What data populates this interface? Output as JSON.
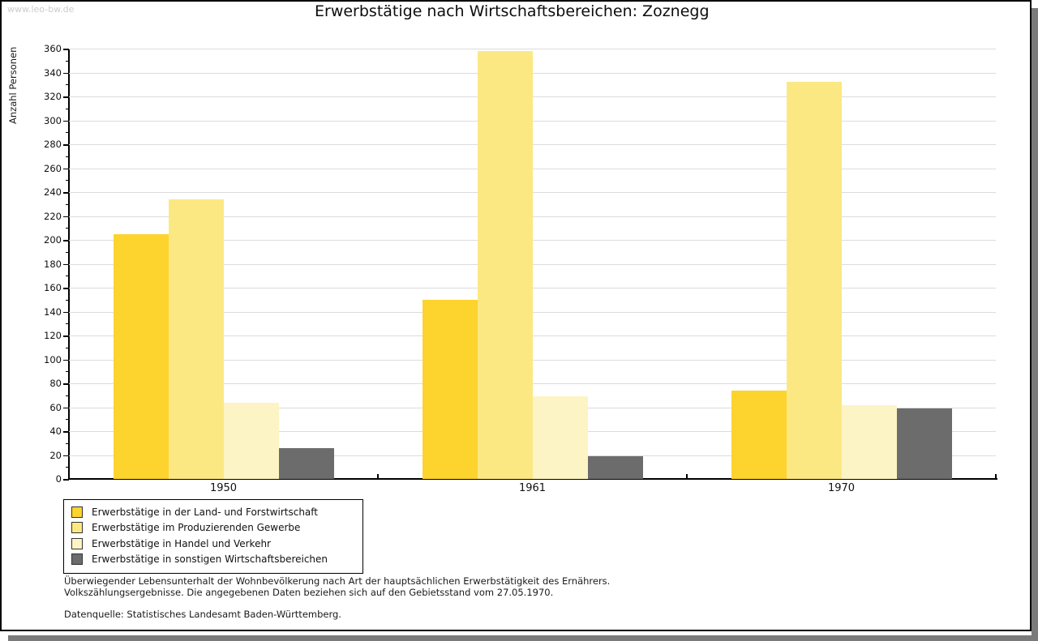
{
  "watermark": "www.leo-bw.de",
  "header": {
    "title": "Erwerbstätige nach Wirtschaftsbereichen: Zoznegg"
  },
  "chart_data": {
    "type": "bar",
    "title": "Erwerbstätige nach Wirtschaftsbereichen: Zoznegg",
    "xlabel": "",
    "ylabel": "Anzahl Personen",
    "categories": [
      "1950",
      "1961",
      "1970"
    ],
    "series": [
      {
        "name": "Erwerbstätige in der Land- und Forstwirtschaft",
        "color": "#fdd32e",
        "values": [
          205,
          150,
          74
        ]
      },
      {
        "name": "Erwerbstätige im Produzierenden Gewerbe",
        "color": "#fce883",
        "values": [
          234,
          358,
          332
        ]
      },
      {
        "name": "Erwerbstätige in Handel und Verkehr",
        "color": "#fcf4c5",
        "values": [
          64,
          69,
          62
        ]
      },
      {
        "name": "Erwerbstätige in sonstigen Wirtschaftsbereichen",
        "color": "#6c6c6c",
        "values": [
          26,
          19,
          59
        ]
      }
    ],
    "ylim": [
      0,
      360
    ],
    "ytick_step": 20,
    "yminor_step": 10,
    "grid": true,
    "legend_position": "bottom-left"
  },
  "footnotes": {
    "line1": "Überwiegender Lebensunterhalt der Wohnbevölkerung nach Art der hauptsächlichen Erwerbstätigkeit des Ernährers.",
    "line2": "Volkszählungsergebnisse. Die angegebenen Daten beziehen sich auf den Gebietsstand vom 27.05.1970.",
    "source": "Datenquelle: Statistisches Landesamt Baden-Württemberg."
  },
  "colors": {
    "grid": "#dcdcdc",
    "axis": "#000000",
    "watermark": "#cccccc",
    "shadow": "#7a7a7a",
    "background": "#ffffff"
  }
}
